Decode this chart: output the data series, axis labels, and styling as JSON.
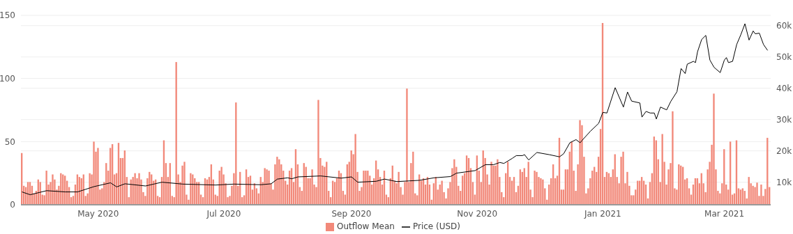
{
  "chart_data": {
    "type": "bar",
    "x": [
      "2020-03-25",
      "2020-03-26",
      "2020-03-27",
      "2020-03-28",
      "2020-03-29",
      "2020-03-30",
      "2020-03-31",
      "2020-04-01",
      "2020-04-02",
      "2020-04-03",
      "2020-04-04",
      "2020-04-05",
      "2020-04-06",
      "2020-04-07",
      "2020-04-08",
      "2020-04-09",
      "2020-04-10",
      "2020-04-11",
      "2020-04-12",
      "2020-04-13",
      "2020-04-14",
      "2020-04-15",
      "2020-04-16",
      "2020-04-17",
      "2020-04-18",
      "2020-04-19",
      "2020-04-20",
      "2020-04-21",
      "2020-04-22",
      "2020-04-23",
      "2020-04-24",
      "2020-04-25",
      "2020-04-26",
      "2020-04-27",
      "2020-04-28",
      "2020-04-29",
      "2020-04-30",
      "2020-05-01",
      "2020-05-02",
      "2020-05-03",
      "2020-05-04",
      "2020-05-05",
      "2020-05-06",
      "2020-05-07",
      "2020-05-08",
      "2020-05-09",
      "2020-05-10",
      "2020-05-11",
      "2020-05-12",
      "2020-05-13",
      "2020-05-14",
      "2020-05-15",
      "2020-05-16",
      "2020-05-17",
      "2020-05-18",
      "2020-05-19",
      "2020-05-20",
      "2020-05-21",
      "2020-05-22",
      "2020-05-23",
      "2020-05-24",
      "2020-05-25",
      "2020-05-26",
      "2020-05-27",
      "2020-05-28",
      "2020-05-29",
      "2020-05-30",
      "2020-05-31",
      "2020-06-01",
      "2020-06-02",
      "2020-06-03",
      "2020-06-04",
      "2020-06-05",
      "2020-06-06",
      "2020-06-07",
      "2020-06-08",
      "2020-06-09",
      "2020-06-10",
      "2020-06-11",
      "2020-06-12",
      "2020-06-13",
      "2020-06-14",
      "2020-06-15",
      "2020-06-16",
      "2020-06-17",
      "2020-06-18",
      "2020-06-19",
      "2020-06-20",
      "2020-06-21",
      "2020-06-22",
      "2020-06-23",
      "2020-06-24",
      "2020-06-25",
      "2020-06-26",
      "2020-06-27",
      "2020-06-28",
      "2020-06-29",
      "2020-06-30",
      "2020-07-01",
      "2020-07-02",
      "2020-07-03",
      "2020-07-04",
      "2020-07-05",
      "2020-07-06",
      "2020-07-07",
      "2020-07-08",
      "2020-07-09",
      "2020-07-10",
      "2020-07-11",
      "2020-07-12",
      "2020-07-13",
      "2020-07-14",
      "2020-07-15",
      "2020-07-16",
      "2020-07-17",
      "2020-07-18",
      "2020-07-19",
      "2020-07-20",
      "2020-07-21",
      "2020-07-22",
      "2020-07-23",
      "2020-07-24",
      "2020-07-25",
      "2020-07-26",
      "2020-07-27",
      "2020-07-28",
      "2020-07-29",
      "2020-07-30",
      "2020-07-31",
      "2020-08-01",
      "2020-08-02",
      "2020-08-03",
      "2020-08-04",
      "2020-08-05",
      "2020-08-06",
      "2020-08-07",
      "2020-08-08",
      "2020-08-09",
      "2020-08-10",
      "2020-08-11",
      "2020-08-12",
      "2020-08-13",
      "2020-08-14",
      "2020-08-15",
      "2020-08-16",
      "2020-08-17",
      "2020-08-18",
      "2020-08-19",
      "2020-08-20",
      "2020-08-21",
      "2020-08-22",
      "2020-08-23",
      "2020-08-24",
      "2020-08-25",
      "2020-08-26",
      "2020-08-27",
      "2020-08-28",
      "2020-08-29",
      "2020-08-30",
      "2020-08-31",
      "2020-09-01",
      "2020-09-02",
      "2020-09-03",
      "2020-09-04",
      "2020-09-05",
      "2020-09-06",
      "2020-09-07",
      "2020-09-08",
      "2020-09-09",
      "2020-09-10",
      "2020-09-11",
      "2020-09-12",
      "2020-09-13",
      "2020-09-14",
      "2020-09-15",
      "2020-09-16",
      "2020-09-17",
      "2020-09-18",
      "2020-09-19",
      "2020-09-20",
      "2020-09-21",
      "2020-09-22",
      "2020-09-23",
      "2020-09-24",
      "2020-09-25",
      "2020-09-26",
      "2020-09-27",
      "2020-09-28",
      "2020-09-29",
      "2020-09-30",
      "2020-10-01",
      "2020-10-02",
      "2020-10-03",
      "2020-10-04",
      "2020-10-05",
      "2020-10-06",
      "2020-10-07",
      "2020-10-08",
      "2020-10-09",
      "2020-10-10",
      "2020-10-11",
      "2020-10-12",
      "2020-10-13",
      "2020-10-14",
      "2020-10-15",
      "2020-10-16",
      "2020-10-17",
      "2020-10-18",
      "2020-10-19",
      "2020-10-20",
      "2020-10-21",
      "2020-10-22",
      "2020-10-23",
      "2020-10-24",
      "2020-10-25",
      "2020-10-26",
      "2020-10-27",
      "2020-10-28",
      "2020-10-29",
      "2020-10-30",
      "2020-10-31",
      "2020-11-01",
      "2020-11-02",
      "2020-11-03",
      "2020-11-04",
      "2020-11-05",
      "2020-11-06",
      "2020-11-07",
      "2020-11-08",
      "2020-11-09",
      "2020-11-10",
      "2020-11-11",
      "2020-11-12",
      "2020-11-13",
      "2020-11-14",
      "2020-11-15",
      "2020-11-16",
      "2020-11-17",
      "2020-11-18",
      "2020-11-19",
      "2020-11-20",
      "2020-11-21",
      "2020-11-22",
      "2020-11-23",
      "2020-11-24",
      "2020-11-25",
      "2020-11-26",
      "2020-11-27",
      "2020-11-28",
      "2020-11-29",
      "2020-11-30",
      "2020-12-01",
      "2020-12-02",
      "2020-12-03",
      "2020-12-04",
      "2020-12-05",
      "2020-12-06",
      "2020-12-07",
      "2020-12-08",
      "2020-12-09",
      "2020-12-10",
      "2020-12-11",
      "2020-12-12",
      "2020-12-13",
      "2020-12-14",
      "2020-12-15",
      "2020-12-16",
      "2020-12-17",
      "2020-12-18",
      "2020-12-19",
      "2020-12-20",
      "2020-12-21",
      "2020-12-22",
      "2020-12-23",
      "2020-12-24",
      "2020-12-25",
      "2020-12-26",
      "2020-12-27",
      "2020-12-28",
      "2020-12-29",
      "2020-12-30",
      "2020-12-31",
      "2021-01-01",
      "2021-01-02",
      "2021-01-03",
      "2021-01-04",
      "2021-01-05",
      "2021-01-06",
      "2021-01-07",
      "2021-01-08",
      "2021-01-09",
      "2021-01-10",
      "2021-01-11",
      "2021-01-12",
      "2021-01-13",
      "2021-01-14",
      "2021-01-15",
      "2021-01-16",
      "2021-01-17",
      "2021-01-18",
      "2021-01-19",
      "2021-01-20",
      "2021-01-21",
      "2021-01-22",
      "2021-01-23",
      "2021-01-24",
      "2021-01-25",
      "2021-01-26",
      "2021-01-27",
      "2021-01-28",
      "2021-01-29",
      "2021-01-30",
      "2021-01-31",
      "2021-02-01",
      "2021-02-02",
      "2021-02-03",
      "2021-02-04",
      "2021-02-05",
      "2021-02-06",
      "2021-02-07",
      "2021-02-08",
      "2021-02-09",
      "2021-02-10",
      "2021-02-11",
      "2021-02-12",
      "2021-02-13",
      "2021-02-14",
      "2021-02-15",
      "2021-02-16",
      "2021-02-17",
      "2021-02-18",
      "2021-02-19",
      "2021-02-20",
      "2021-02-21",
      "2021-02-22",
      "2021-02-23",
      "2021-02-24",
      "2021-02-25",
      "2021-02-26",
      "2021-02-27",
      "2021-02-28",
      "2021-03-01",
      "2021-03-02",
      "2021-03-03",
      "2021-03-04",
      "2021-03-05",
      "2021-03-06",
      "2021-03-07",
      "2021-03-08",
      "2021-03-09",
      "2021-03-10",
      "2021-03-11",
      "2021-03-12",
      "2021-03-13",
      "2021-03-14",
      "2021-03-15",
      "2021-03-16",
      "2021-03-17",
      "2021-03-18",
      "2021-03-19",
      "2021-03-20",
      "2021-03-21",
      "2021-03-22",
      "2021-03-23"
    ],
    "series": [
      {
        "name": "Outflow Mean",
        "color": "#f2897a",
        "values": [
          41,
          15,
          14,
          18,
          18,
          15,
          9,
          11,
          20,
          18,
          8,
          7.5,
          27,
          16,
          18,
          24,
          20,
          12,
          15,
          25,
          24,
          23,
          19,
          14,
          6,
          7,
          16,
          24,
          22,
          21,
          24,
          7,
          9,
          25,
          24,
          50,
          42,
          45,
          12,
          13,
          18,
          33,
          27,
          45,
          48,
          24,
          25,
          49,
          37,
          37,
          43,
          22,
          6,
          20,
          22,
          25,
          21,
          25,
          20,
          10,
          7,
          21,
          26,
          24,
          19,
          20,
          7,
          6,
          22,
          51,
          33,
          22,
          33,
          7,
          6,
          113,
          24,
          18,
          31,
          34,
          8,
          4,
          25,
          24,
          21,
          18,
          18,
          8,
          6,
          21,
          20,
          22,
          32,
          20,
          8,
          7,
          27,
          30,
          24,
          17,
          6,
          7,
          15,
          25,
          81,
          15,
          26,
          6,
          7.5,
          28,
          22,
          23,
          12,
          17,
          13,
          9,
          22,
          18,
          29,
          28,
          27,
          17,
          12,
          32,
          38,
          36,
          32,
          27,
          19,
          16,
          27,
          29,
          18,
          44,
          32,
          14,
          11,
          33,
          30,
          21,
          21,
          28,
          16,
          14,
          83,
          37,
          31,
          30,
          34,
          11,
          6,
          19,
          18,
          21,
          27,
          25,
          11,
          8,
          32,
          34,
          43,
          40,
          56,
          26,
          11,
          14,
          27,
          27,
          27,
          23,
          16,
          21,
          35,
          28,
          22,
          16,
          27,
          8,
          6,
          21,
          31,
          19,
          17,
          26,
          14,
          8,
          18,
          92,
          18,
          33,
          42,
          9,
          7.5,
          24,
          19,
          21,
          16,
          22,
          16,
          4,
          17,
          22,
          12,
          16,
          19,
          10,
          5,
          13,
          18,
          29,
          36,
          30,
          15,
          11,
          23,
          25,
          39,
          37,
          29,
          18,
          8,
          39,
          27,
          18,
          43,
          37,
          24,
          16,
          34,
          31,
          31,
          36,
          22,
          10,
          6,
          25,
          34,
          22,
          19,
          22,
          10,
          15,
          28,
          26,
          29,
          22,
          34,
          12,
          6,
          27,
          26,
          22,
          21,
          20,
          13,
          4,
          16,
          21,
          32,
          21,
          23,
          53,
          12,
          12,
          28,
          28,
          42,
          50,
          27,
          11,
          32,
          67,
          63,
          38,
          9,
          13,
          21,
          27,
          30,
          26,
          38,
          60,
          144,
          22,
          26,
          25,
          22,
          28,
          40,
          22,
          17,
          38,
          42,
          17,
          26,
          15,
          7.5,
          7.5,
          12,
          19,
          19,
          22,
          19,
          16,
          5,
          18,
          25,
          54,
          51,
          36,
          18,
          56,
          34,
          16,
          28,
          33,
          74,
          13,
          12,
          32,
          31,
          30,
          20,
          21,
          13,
          8,
          16,
          21,
          21,
          17,
          25,
          17,
          10,
          28,
          34,
          47.5,
          88,
          28,
          11,
          9,
          17,
          44,
          16,
          12,
          50,
          8,
          9,
          51,
          13,
          12,
          13,
          11,
          5,
          22,
          17,
          15,
          14,
          17.5,
          7,
          16,
          7,
          12.5,
          53,
          14
        ]
      },
      {
        "name": "Price (USD)",
        "type": "line",
        "axis": "y2",
        "color": "#000000",
        "x": [
          "2020-03-25",
          "2020-03-29",
          "2020-04-06",
          "2020-04-15",
          "2020-04-21",
          "2020-04-29",
          "2020-05-07",
          "2020-05-10",
          "2020-05-14",
          "2020-05-24",
          "2020-05-28",
          "2020-06-01",
          "2020-06-11",
          "2020-06-27",
          "2020-07-06",
          "2020-07-19",
          "2020-07-24",
          "2020-07-27",
          "2020-08-01",
          "2020-08-03",
          "2020-08-06",
          "2020-08-17",
          "2020-08-27",
          "2020-09-01",
          "2020-09-04",
          "2020-09-13",
          "2020-09-17",
          "2020-09-23",
          "2020-10-04",
          "2020-10-11",
          "2020-10-19",
          "2020-10-22",
          "2020-10-31",
          "2020-11-05",
          "2020-11-09",
          "2020-11-12",
          "2020-11-14",
          "2020-11-18",
          "2020-11-20",
          "2020-11-23",
          "2020-11-24",
          "2020-11-26",
          "2020-11-30",
          "2020-12-06",
          "2020-12-11",
          "2020-12-13",
          "2020-12-16",
          "2020-12-19",
          "2020-12-21",
          "2020-12-22",
          "2020-12-26",
          "2020-12-30",
          "2021-01-01",
          "2021-01-03",
          "2021-01-07",
          "2021-01-11",
          "2021-01-13",
          "2021-01-15",
          "2021-01-19",
          "2021-01-20",
          "2021-01-22",
          "2021-01-24",
          "2021-01-26",
          "2021-01-27",
          "2021-01-29",
          "2021-02-01",
          "2021-02-03",
          "2021-02-06",
          "2021-02-08",
          "2021-02-10",
          "2021-02-11",
          "2021-02-14",
          "2021-02-15",
          "2021-02-16",
          "2021-02-18",
          "2021-02-20",
          "2021-02-22",
          "2021-02-24",
          "2021-02-27",
          "2021-03-01",
          "2021-03-02",
          "2021-03-03",
          "2021-03-05",
          "2021-03-07",
          "2021-03-09",
          "2021-03-11",
          "2021-03-13",
          "2021-03-15",
          "2021-03-16",
          "2021-03-18",
          "2021-03-20",
          "2021-03-22"
        ],
        "values": [
          6900,
          6000,
          7300,
          6900,
          6900,
          8600,
          9800,
          8500,
          9500,
          8800,
          9400,
          10000,
          9400,
          9100,
          9400,
          9200,
          9500,
          11000,
          11400,
          11100,
          11700,
          12000,
          11300,
          11700,
          10000,
          10300,
          11000,
          10200,
          10600,
          11400,
          11800,
          12900,
          13700,
          15600,
          15600,
          16300,
          16000,
          17600,
          18500,
          18500,
          18800,
          17100,
          19500,
          18800,
          18100,
          19100,
          22600,
          23600,
          22600,
          23400,
          26300,
          28800,
          32300,
          32100,
          40200,
          34000,
          38800,
          35900,
          35300,
          30800,
          32600,
          32100,
          32100,
          30200,
          34000,
          33100,
          35800,
          38900,
          46300,
          44700,
          47700,
          48600,
          48200,
          51700,
          55600,
          56900,
          49000,
          46700,
          45000,
          49000,
          49800,
          48200,
          48600,
          54000,
          57100,
          60600,
          55400,
          58300,
          57400,
          57600,
          54000,
          52100
        ]
      }
    ],
    "xlim": [
      "2020-03-24T12:00",
      "2021-03-23T12:00"
    ],
    "xticks": [
      {
        "value": "2020-05-01",
        "label": "May 2020"
      },
      {
        "value": "2020-07-01",
        "label": "Jul 2020"
      },
      {
        "value": "2020-09-01",
        "label": "Sep 2020"
      },
      {
        "value": "2020-11-01",
        "label": "Nov 2020"
      },
      {
        "value": "2021-01-01",
        "label": "Jan 2021"
      },
      {
        "value": "2021-03-01",
        "label": "Mar 2021"
      }
    ],
    "ylim": [
      0,
      150
    ],
    "yticks": [
      0,
      50,
      100,
      150
    ],
    "y2lim": [
      2800,
      63300
    ],
    "y2ticks": [
      {
        "value": 10000,
        "label": "10k"
      },
      {
        "value": 20000,
        "label": "20k"
      },
      {
        "value": 30000,
        "label": "30k"
      },
      {
        "value": 40000,
        "label": "40k"
      },
      {
        "value": 50000,
        "label": "50k"
      },
      {
        "value": 60000,
        "label": "60k"
      }
    ],
    "grid": "y",
    "legend": "bottom"
  }
}
